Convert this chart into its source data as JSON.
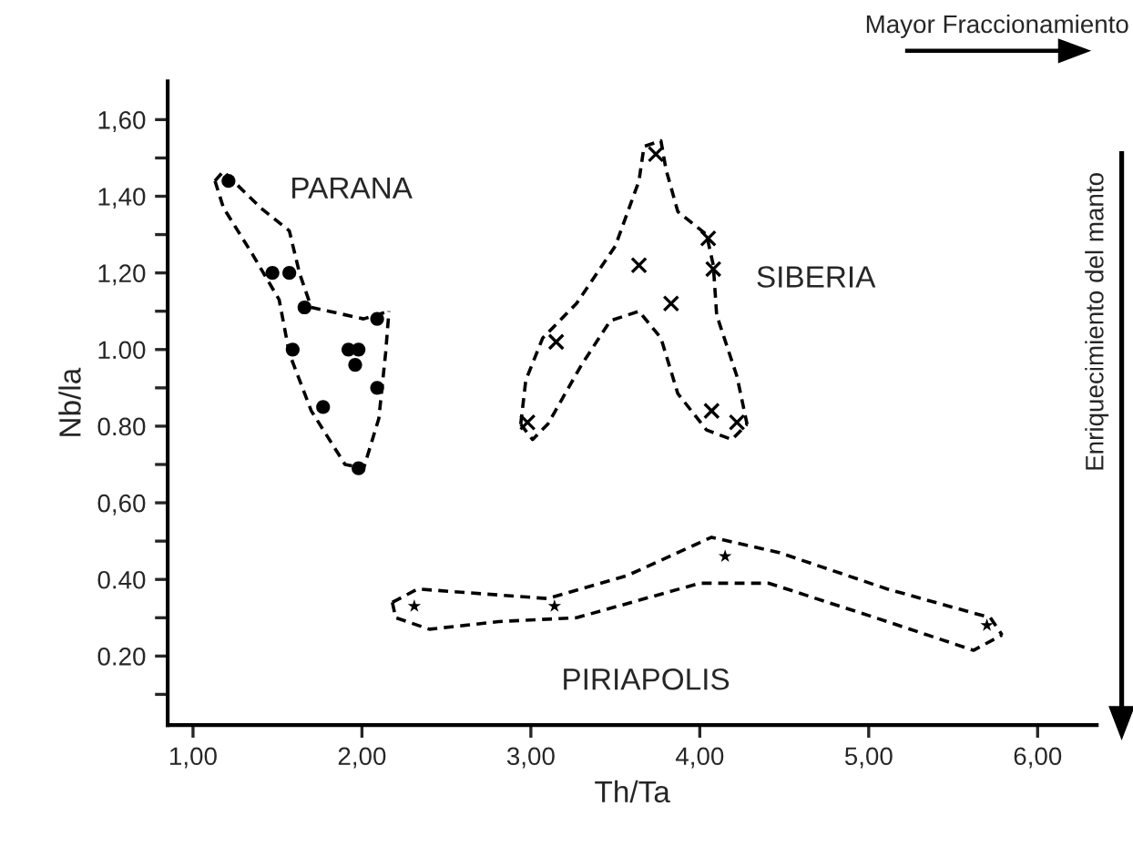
{
  "chart_data": {
    "type": "scatter",
    "xlabel": "Th/Ta",
    "ylabel": "Nb/la",
    "xlim": [
      0.85,
      6.35
    ],
    "ylim": [
      0.02,
      1.7
    ],
    "xticks": [
      {
        "value": 1,
        "label": "1,00"
      },
      {
        "value": 2,
        "label": "2,00"
      },
      {
        "value": 3,
        "label": "3,00"
      },
      {
        "value": 4,
        "label": "4,00"
      },
      {
        "value": 5,
        "label": "5,00"
      },
      {
        "value": 6,
        "label": "6,00"
      }
    ],
    "yticks": [
      {
        "value": 0.1,
        "label": null
      },
      {
        "value": 0.2,
        "label": "0.20"
      },
      {
        "value": 0.3,
        "label": null
      },
      {
        "value": 0.4,
        "label": "0.40"
      },
      {
        "value": 0.5,
        "label": null
      },
      {
        "value": 0.6,
        "label": "0,60"
      },
      {
        "value": 0.7,
        "label": null
      },
      {
        "value": 0.8,
        "label": "0.80"
      },
      {
        "value": 0.9,
        "label": null
      },
      {
        "value": 1.0,
        "label": "1.00"
      },
      {
        "value": 1.1,
        "label": null
      },
      {
        "value": 1.2,
        "label": "1,20"
      },
      {
        "value": 1.3,
        "label": null
      },
      {
        "value": 1.4,
        "label": "1,40"
      },
      {
        "value": 1.5,
        "label": null
      },
      {
        "value": 1.6,
        "label": "1,60"
      }
    ],
    "grid": false,
    "legend": false,
    "series": [
      {
        "marker": "circle",
        "color": "#000000",
        "x": [
          1.21,
          1.47,
          1.57,
          1.66,
          1.59,
          2.09,
          1.92,
          1.96,
          1.98,
          2.09,
          1.77,
          1.98
        ],
        "values": [
          1.44,
          1.2,
          1.2,
          1.11,
          1.0,
          1.08,
          1.0,
          0.96,
          1.0,
          0.9,
          0.85,
          0.69
        ]
      },
      {
        "marker": "cross",
        "color": "#000000",
        "x": [
          3.74,
          4.05,
          4.08,
          3.64,
          3.83,
          3.15,
          2.98,
          4.07,
          4.22
        ],
        "values": [
          1.51,
          1.29,
          1.21,
          1.22,
          1.12,
          1.02,
          0.81,
          0.84,
          0.81
        ]
      },
      {
        "marker": "star",
        "color": "#000000",
        "x": [
          2.31,
          3.14,
          4.15,
          5.7
        ],
        "values": [
          0.33,
          0.33,
          0.46,
          0.28
        ]
      },
      {
        "type": "line",
        "line_style": "dashed",
        "marker": "none",
        "color": "#000000",
        "x": [
          1.13,
          1.18,
          1.4,
          1.57,
          1.63,
          1.7,
          2.01,
          2.16
        ],
        "values": [
          1.44,
          1.465,
          1.37,
          1.31,
          1.2,
          1.11,
          1.08,
          1.1
        ]
      },
      {
        "type": "line",
        "line_style": "dashed",
        "marker": "none",
        "color": "#000000",
        "x": [
          1.13,
          1.18,
          1.35,
          1.51,
          1.57,
          1.7,
          1.9,
          2.01,
          2.1,
          2.14,
          2.16
        ],
        "values": [
          1.44,
          1.37,
          1.25,
          1.13,
          0.99,
          0.84,
          0.7,
          0.69,
          0.82,
          0.99,
          1.1
        ]
      },
      {
        "type": "line",
        "line_style": "dashed",
        "marker": "none",
        "color": "#000000",
        "x": [
          2.94,
          2.97,
          3.07,
          3.27,
          3.5,
          3.64,
          3.67,
          3.77,
          3.8,
          3.87,
          4.04,
          4.08,
          4.1,
          4.22,
          4.28
        ],
        "values": [
          0.805,
          0.92,
          1.03,
          1.12,
          1.27,
          1.44,
          1.53,
          1.545,
          1.47,
          1.36,
          1.3,
          1.22,
          1.09,
          0.93,
          0.805
        ]
      },
      {
        "type": "line",
        "line_style": "dashed",
        "marker": "none",
        "color": "#000000",
        "x": [
          2.94,
          3.01,
          3.1,
          3.3,
          3.47,
          3.64,
          3.77,
          3.87,
          4.04,
          4.19,
          4.28
        ],
        "values": [
          0.805,
          0.765,
          0.805,
          0.96,
          1.075,
          1.1,
          1.03,
          0.885,
          0.79,
          0.765,
          0.805
        ]
      },
      {
        "type": "line",
        "line_style": "dashed",
        "marker": "none",
        "color": "#000000",
        "x": [
          2.18,
          2.33,
          3.1,
          3.57,
          4.07,
          4.47,
          5.11,
          5.72,
          5.79
        ],
        "values": [
          0.34,
          0.375,
          0.35,
          0.41,
          0.51,
          0.47,
          0.375,
          0.3,
          0.255
        ]
      },
      {
        "type": "line",
        "line_style": "dashed",
        "marker": "none",
        "color": "#000000",
        "x": [
          2.18,
          2.2,
          2.4,
          2.81,
          3.27,
          4.0,
          4.41,
          5.11,
          5.62,
          5.79
        ],
        "values": [
          0.34,
          0.3,
          0.27,
          0.29,
          0.3,
          0.39,
          0.39,
          0.29,
          0.215,
          0.255
        ]
      }
    ],
    "annotations": [
      "PARANA",
      "SIBERIA",
      "PIRIAPOLIS",
      "Mayor Fraccionamiento",
      "Enriquecimiento del manto"
    ]
  }
}
